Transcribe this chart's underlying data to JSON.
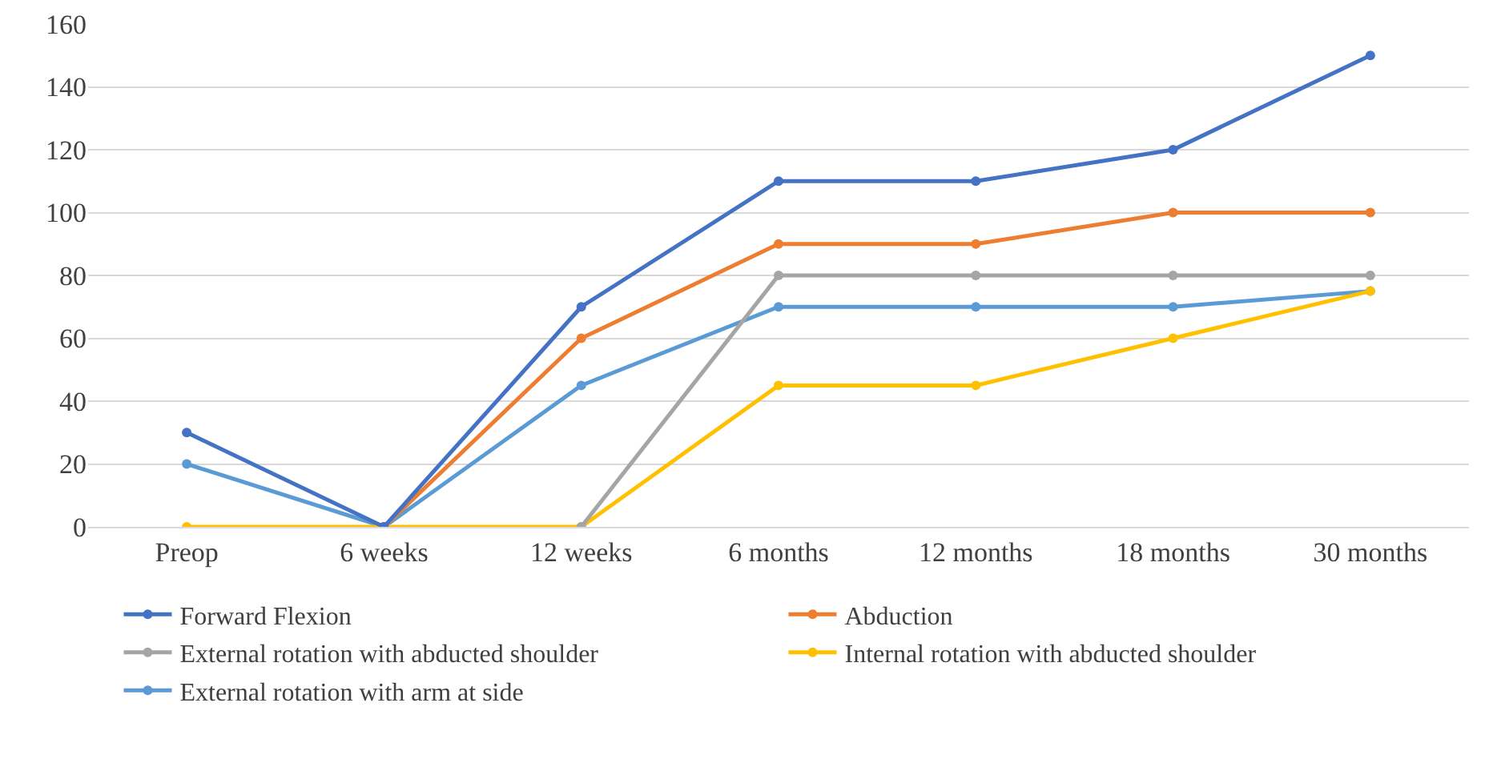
{
  "chart_data": {
    "type": "line",
    "categories": [
      "Preop",
      "6 weeks",
      "12 weeks",
      "6 months",
      "12 months",
      "18 months",
      "30 months"
    ],
    "series": [
      {
        "name": "Forward Flexion",
        "color": "#4472c4",
        "values": [
          30,
          0,
          70,
          110,
          110,
          120,
          150
        ]
      },
      {
        "name": "Abduction",
        "color": "#ed7d31",
        "values": [
          null,
          0,
          60,
          90,
          90,
          100,
          100
        ]
      },
      {
        "name": "External rotation with abducted shoulder",
        "color": "#a5a5a5",
        "values": [
          null,
          null,
          0,
          80,
          80,
          80,
          80
        ]
      },
      {
        "name": "Internal rotation with abducted shoulder",
        "color": "#ffc000",
        "values": [
          0,
          0,
          0,
          45,
          45,
          60,
          75
        ]
      },
      {
        "name": "External rotation with arm at side",
        "color": "#5b9bd5",
        "values": [
          20,
          0,
          45,
          70,
          70,
          70,
          75
        ]
      }
    ],
    "ylim": [
      0,
      160
    ],
    "yticks": [
      0,
      20,
      40,
      60,
      80,
      100,
      120,
      140,
      160
    ],
    "grid": "y",
    "legend": "bottom",
    "marker": "circle",
    "line_style": "solid"
  }
}
